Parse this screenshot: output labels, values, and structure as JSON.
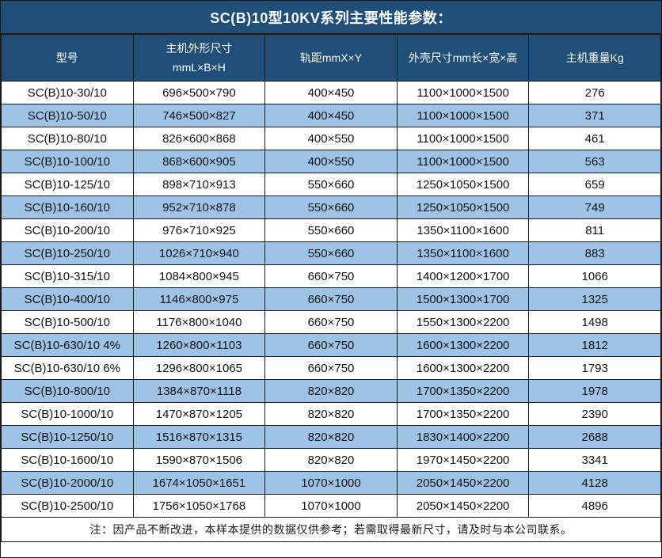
{
  "title": "SC(B)10型10KV系列主要性能参数：",
  "note": "注：因产品不断改进，本样本提供的数据仅供参考；若需取得最新尺寸，请及时与本公司联系。",
  "colors": {
    "header_bg": "#1F4E79",
    "header_text": "#FFFFFF",
    "row_stripe_bg": "#9DC3E6",
    "row_plain_bg": "#FFFFFF",
    "border": "#1A1A1A",
    "body_text": "#111111"
  },
  "chart_data": {
    "type": "table",
    "title": "SC(B)10型10KV系列主要性能参数：",
    "columns": [
      "型号",
      "主机外形尺寸\nmmL×B×H",
      "轨距mmX×Y",
      "外壳尺寸mm长×宽×高",
      "主机重量Kg"
    ],
    "rows": [
      [
        "SC(B)10-30/10",
        "696×500×790",
        "400×450",
        "1100×1000×1500",
        "276"
      ],
      [
        "SC(B)10-50/10",
        "746×500×827",
        "400×450",
        "1100×1000×1500",
        "371"
      ],
      [
        "SC(B)10-80/10",
        "826×600×868",
        "400×550",
        "1100×1000×1500",
        "461"
      ],
      [
        "SC(B)10-100/10",
        "868×600×905",
        "400×550",
        "1100×1000×1500",
        "563"
      ],
      [
        "SC(B)10-125/10",
        "898×710×913",
        "550×660",
        "1250×1050×1500",
        "659"
      ],
      [
        "SC(B)10-160/10",
        "952×710×878",
        "550×660",
        "1250×1050×1500",
        "749"
      ],
      [
        "SC(B)10-200/10",
        "976×710×925",
        "550×660",
        "1350×1100×1600",
        "811"
      ],
      [
        "SC(B)10-250/10",
        "1026×710×940",
        "550×660",
        "1350×1100×1600",
        "883"
      ],
      [
        "SC(B)10-315/10",
        "1084×800×945",
        "660×750",
        "1400×1200×1700",
        "1066"
      ],
      [
        "SC(B)10-400/10",
        "1146×800×975",
        "660×750",
        "1500×1300×1700",
        "1325"
      ],
      [
        "SC(B)10-500/10",
        "1176×800×1040",
        "660×750",
        "1550×1300×2200",
        "1498"
      ],
      [
        "SC(B)10-630/10 4%",
        "1260×800×1103",
        "660×750",
        "1600×1300×2200",
        "1812"
      ],
      [
        "SC(B)10-630/10 6%",
        "1296×800×1065",
        "660×750",
        "1600×1300×2200",
        "1793"
      ],
      [
        "SC(B)10-800/10",
        "1384×870×1118",
        "820×820",
        "1700×1350×2200",
        "1978"
      ],
      [
        "SC(B)10-1000/10",
        "1470×870×1205",
        "820×820",
        "1700×1350×2200",
        "2390"
      ],
      [
        "SC(B)10-1250/10",
        "1516×870×1315",
        "820×820",
        "1830×1400×2200",
        "2688"
      ],
      [
        "SC(B)10-1600/10",
        "1590×870×1506",
        "820×820",
        "1970×1450×2200",
        "3341"
      ],
      [
        "SC(B)10-2000/10",
        "1674×1050×1651",
        "1070×1000",
        "2050×1450×2200",
        "4128"
      ],
      [
        "SC(B)10-2500/10",
        "1756×1050×1768",
        "1070×1000",
        "2050×1450×2200",
        "4896"
      ]
    ],
    "note": "注：因产品不断改进，本样本提供的数据仅供参考；若需取得最新尺寸，请及时与本公司联系。",
    "layout_hints": {
      "striped": true,
      "stripe_pattern": "odd-rows-white-even-rows-blue",
      "column_width_pct": [
        20,
        20,
        20,
        20,
        20
      ],
      "all_cells_centered": true
    }
  }
}
